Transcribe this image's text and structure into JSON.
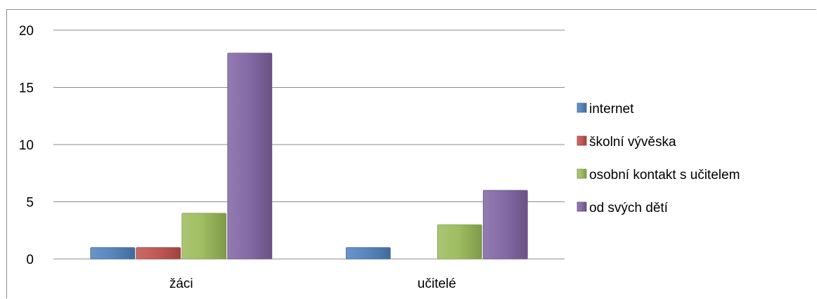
{
  "chart_data": {
    "type": "bar",
    "categories": [
      "žáci",
      "učitelé"
    ],
    "series": [
      {
        "name": "internet",
        "values": [
          1,
          1
        ],
        "color": "#4f81bd"
      },
      {
        "name": "školní vývěska",
        "values": [
          1,
          0
        ],
        "color": "#c0504d"
      },
      {
        "name": "osobní kontakt s učitelem",
        "values": [
          4,
          3
        ],
        "color": "#9bbb59"
      },
      {
        "name": "od svých dětí",
        "values": [
          18,
          6
        ],
        "color": "#8064a2"
      }
    ],
    "title": "",
    "xlabel": "",
    "ylabel": "",
    "ylim": [
      0,
      20
    ],
    "yticks": [
      0,
      5,
      10,
      15,
      20
    ],
    "grid": true,
    "legend_position": "right"
  }
}
